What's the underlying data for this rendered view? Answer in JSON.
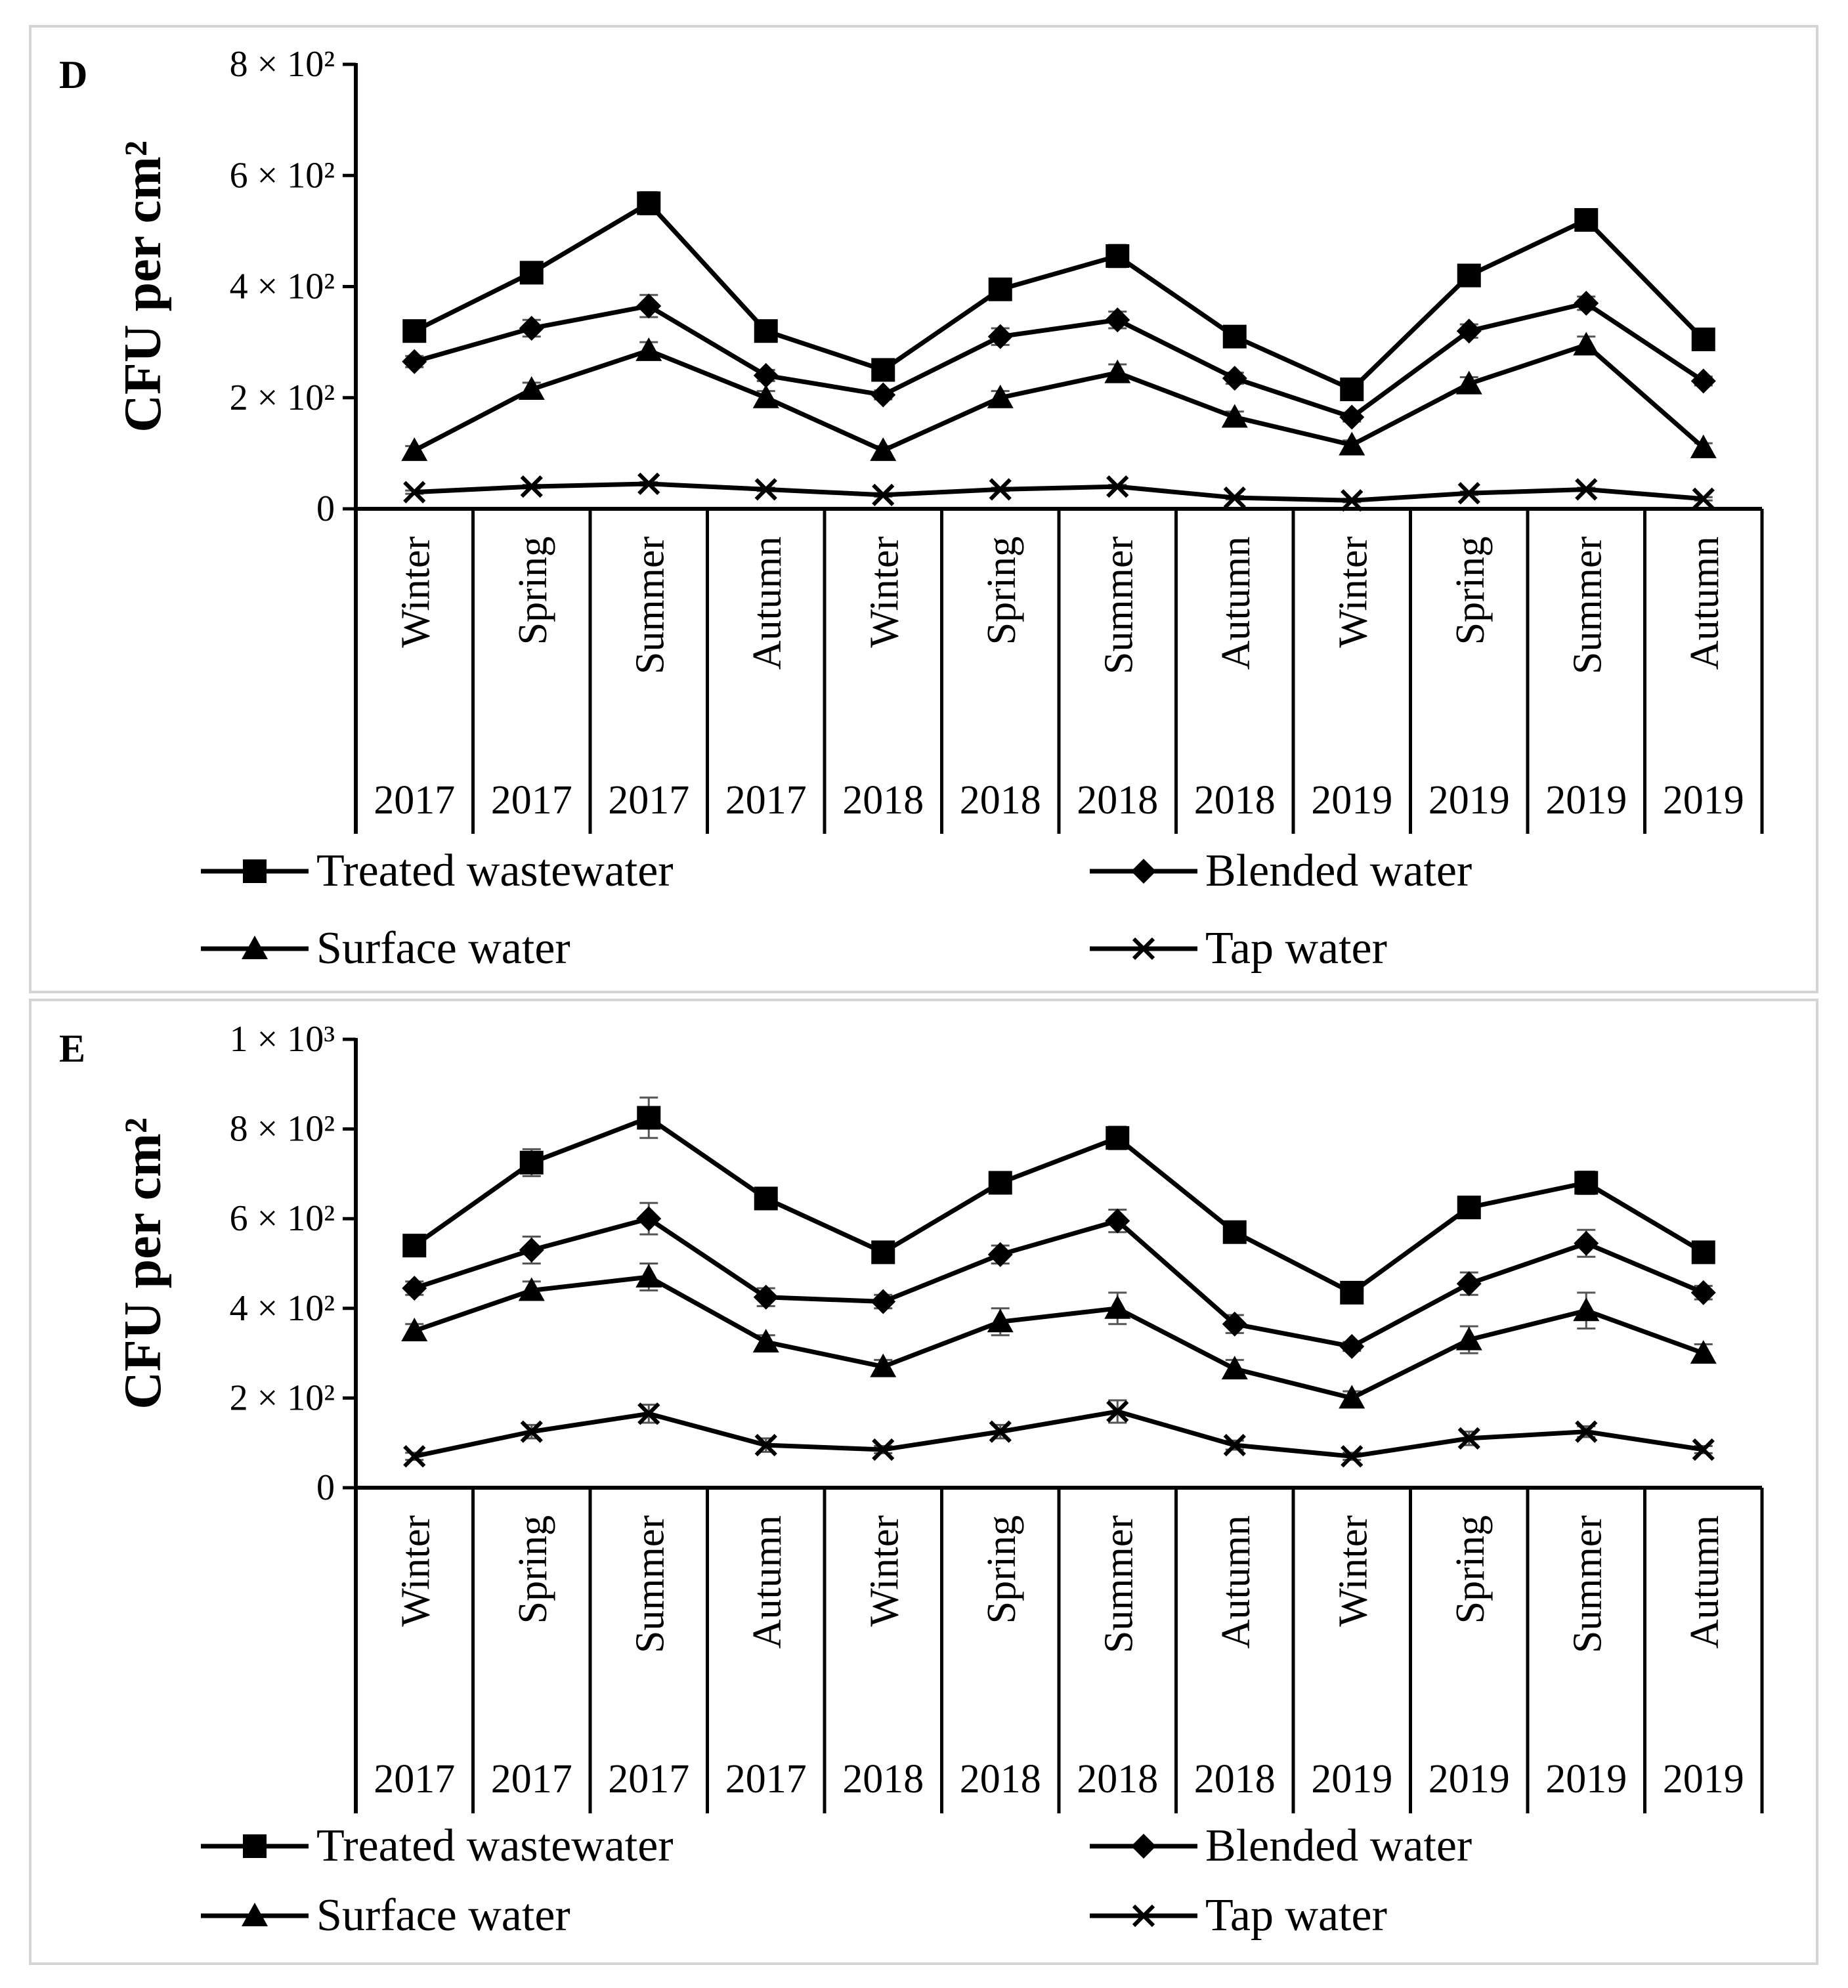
{
  "colors": {
    "series": "#000000",
    "panel_border": "#d4d4d4",
    "background": "#ffffff"
  },
  "legend": {
    "items": [
      {
        "name": "Treated wastewater",
        "marker": "square"
      },
      {
        "name": "Blended water",
        "marker": "diamond"
      },
      {
        "name": "Surface water",
        "marker": "triangle"
      },
      {
        "name": "Tap water",
        "marker": "x"
      }
    ]
  },
  "chart_data": [
    {
      "type": "line",
      "panel_label": "D",
      "ylabel": "CFU per cm²",
      "ylim": [
        0,
        800
      ],
      "y_ticks": [
        {
          "value": 0,
          "label": "0"
        },
        {
          "value": 200,
          "label": "2 × 10²"
        },
        {
          "value": 400,
          "label": "4 × 10²"
        },
        {
          "value": 600,
          "label": "6 × 10²"
        },
        {
          "value": 800,
          "label": "8 × 10²"
        }
      ],
      "categories": [
        "Winter",
        "Spring",
        "Summer",
        "Autumn",
        "Winter",
        "Spring",
        "Summer",
        "Autumn",
        "Winter",
        "Spring",
        "Summer",
        "Autumn"
      ],
      "years": [
        "2017",
        "2017",
        "2017",
        "2017",
        "2018",
        "2018",
        "2018",
        "2018",
        "2019",
        "2019",
        "2019",
        "2019"
      ],
      "series": [
        {
          "name": "Treated wastewater",
          "marker": "square",
          "values": [
            320,
            425,
            550,
            320,
            250,
            395,
            455,
            310,
            215,
            420,
            520,
            305
          ],
          "errors": [
            10,
            12,
            20,
            12,
            10,
            15,
            20,
            12,
            10,
            15,
            15,
            10
          ]
        },
        {
          "name": "Blended water",
          "marker": "diamond",
          "values": [
            265,
            325,
            365,
            240,
            205,
            310,
            340,
            235,
            165,
            320,
            370,
            230
          ],
          "errors": [
            10,
            15,
            20,
            10,
            8,
            15,
            15,
            10,
            8,
            12,
            12,
            8
          ]
        },
        {
          "name": "Surface water",
          "marker": "triangle",
          "values": [
            105,
            215,
            285,
            200,
            105,
            200,
            245,
            165,
            115,
            225,
            295,
            110
          ],
          "errors": [
            8,
            12,
            15,
            12,
            8,
            12,
            15,
            10,
            8,
            12,
            15,
            8
          ]
        },
        {
          "name": "Tap water",
          "marker": "x",
          "values": [
            30,
            40,
            45,
            35,
            25,
            35,
            40,
            20,
            15,
            28,
            35,
            18
          ],
          "errors": [
            3,
            3,
            3,
            3,
            3,
            3,
            3,
            3,
            3,
            3,
            3,
            3
          ]
        }
      ]
    },
    {
      "type": "line",
      "panel_label": "E",
      "ylabel": "CFU per cm²",
      "ylim": [
        0,
        1000
      ],
      "y_ticks": [
        {
          "value": 0,
          "label": "0"
        },
        {
          "value": 200,
          "label": "2 × 10²"
        },
        {
          "value": 400,
          "label": "4 × 10²"
        },
        {
          "value": 600,
          "label": "6 × 10²"
        },
        {
          "value": 800,
          "label": "8 × 10²"
        },
        {
          "value": 1000,
          "label": "1 × 10³"
        }
      ],
      "categories": [
        "Winter",
        "Spring",
        "Summer",
        "Autumn",
        "Winter",
        "Spring",
        "Summer",
        "Autumn",
        "Winter",
        "Spring",
        "Summer",
        "Autumn"
      ],
      "years": [
        "2017",
        "2017",
        "2017",
        "2017",
        "2018",
        "2018",
        "2018",
        "2018",
        "2019",
        "2019",
        "2019",
        "2019"
      ],
      "series": [
        {
          "name": "Treated wastewater",
          "marker": "square",
          "values": [
            540,
            725,
            825,
            645,
            525,
            680,
            780,
            570,
            435,
            625,
            680,
            525
          ],
          "errors": [
            15,
            30,
            45,
            20,
            15,
            20,
            25,
            15,
            15,
            20,
            25,
            15
          ]
        },
        {
          "name": "Blended water",
          "marker": "diamond",
          "values": [
            445,
            530,
            600,
            425,
            415,
            520,
            595,
            365,
            315,
            455,
            545,
            435
          ],
          "errors": [
            15,
            30,
            35,
            20,
            15,
            20,
            25,
            20,
            10,
            25,
            30,
            15
          ]
        },
        {
          "name": "Surface water",
          "marker": "triangle",
          "values": [
            350,
            440,
            470,
            325,
            270,
            370,
            400,
            265,
            200,
            330,
            395,
            300
          ],
          "errors": [
            15,
            20,
            30,
            15,
            15,
            30,
            35,
            20,
            15,
            30,
            40,
            20
          ]
        },
        {
          "name": "Tap water",
          "marker": "x",
          "values": [
            70,
            125,
            165,
            95,
            85,
            125,
            170,
            95,
            70,
            110,
            125,
            85
          ],
          "errors": [
            8,
            15,
            20,
            15,
            8,
            15,
            25,
            10,
            8,
            15,
            12,
            8
          ]
        }
      ]
    }
  ]
}
